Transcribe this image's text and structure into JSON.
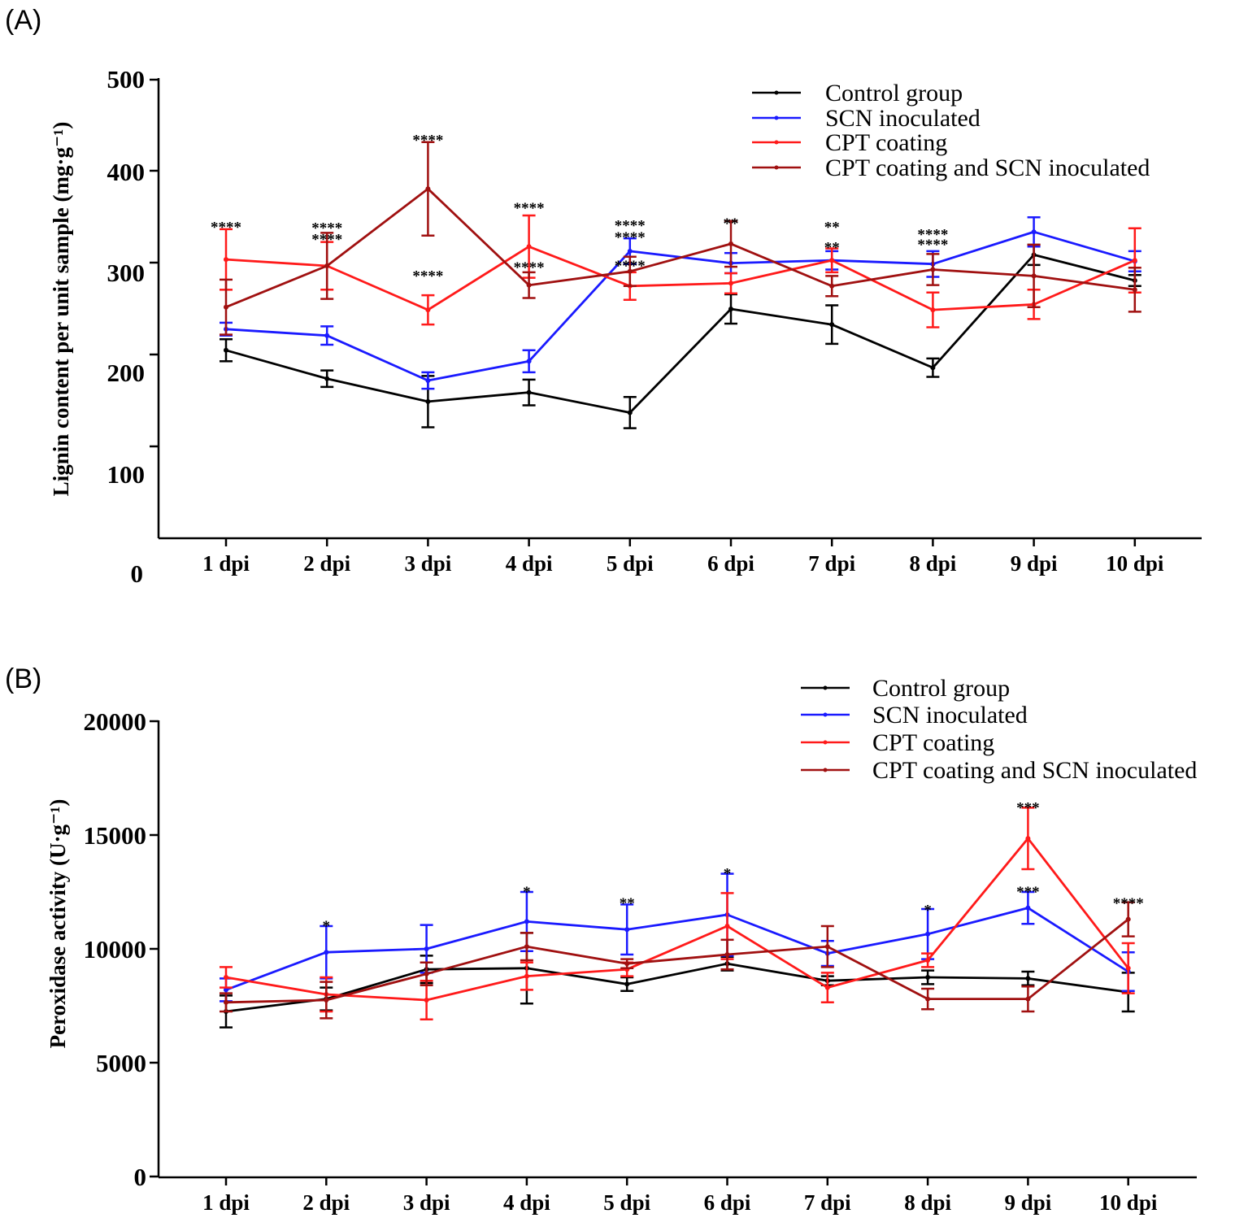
{
  "colors": {
    "control": "#000000",
    "scn": "#1a1aff",
    "cpt": "#ff1a1a",
    "cpt_scn": "#a01010",
    "axis": "#000000"
  },
  "chart_data": [
    {
      "type": "line",
      "panel_label": "(A)",
      "ylabel": "Lignin content per unit sample (mg·g⁻¹)",
      "ylim": [
        0,
        500
      ],
      "yticks": [
        {
          "value": 0,
          "label": "0"
        },
        {
          "value": 100,
          "label": "100"
        },
        {
          "value": 200,
          "label": "200"
        },
        {
          "value": 300,
          "label": "300"
        },
        {
          "value": 400,
          "label": "400"
        },
        {
          "value": 500,
          "label": "500"
        }
      ],
      "categories": [
        "1 dpi",
        "2 dpi",
        "3 dpi",
        "4 dpi",
        "5 dpi",
        "6 dpi",
        "7 dpi",
        "8 dpi",
        "9 dpi",
        "10 dpi"
      ],
      "series": [
        {
          "key": "control",
          "name": "Control group",
          "values": [
            205,
            174,
            149,
            159,
            137,
            250,
            233,
            186,
            309,
            281
          ],
          "errors": [
            12,
            9,
            28,
            14,
            17,
            16,
            21,
            10,
            11,
            6
          ]
        },
        {
          "key": "scn",
          "name": "SCN inoculated",
          "values": [
            228,
            221,
            172,
            193,
            313,
            300,
            303,
            299,
            334,
            302
          ],
          "errors": [
            7,
            10,
            9,
            12,
            14,
            11,
            10,
            14,
            16,
            11
          ]
        },
        {
          "key": "cpt",
          "name": "CPT coating",
          "values": [
            304,
            297,
            249,
            318,
            275,
            278,
            303,
            249,
            255,
            303
          ],
          "errors": [
            33,
            26,
            16,
            34,
            15,
            11,
            13,
            19,
            16,
            35
          ]
        },
        {
          "key": "cpt_scn",
          "name": "CPT coating and SCN inoculated",
          "values": [
            252,
            297,
            381,
            276,
            291,
            321,
            275,
            293,
            286,
            271
          ],
          "errors": [
            30,
            36,
            51,
            14,
            16,
            25,
            11,
            17,
            34,
            24
          ]
        }
      ],
      "annotations": [
        {
          "index": 0,
          "value": 339,
          "text": "****"
        },
        {
          "index": 1,
          "value": 338,
          "text": "****"
        },
        {
          "index": 1,
          "value": 326,
          "text": "****"
        },
        {
          "index": 2,
          "value": 434,
          "text": "****"
        },
        {
          "index": 2,
          "value": 286,
          "text": "****"
        },
        {
          "index": 3,
          "value": 360,
          "text": "****"
        },
        {
          "index": 3,
          "value": 295,
          "text": "****"
        },
        {
          "index": 4,
          "value": 341,
          "text": "****"
        },
        {
          "index": 4,
          "value": 328,
          "text": "****"
        },
        {
          "index": 4,
          "value": 297,
          "text": "****"
        },
        {
          "index": 5,
          "value": 343,
          "text": "**"
        },
        {
          "index": 6,
          "value": 339,
          "text": "**"
        },
        {
          "index": 6,
          "value": 317,
          "text": "**"
        },
        {
          "index": 7,
          "value": 331,
          "text": "****"
        },
        {
          "index": 7,
          "value": 320,
          "text": "****"
        }
      ]
    },
    {
      "type": "line",
      "panel_label": "(B)",
      "ylabel": "Peroxidase activity (U·g⁻¹)",
      "ylim": [
        0,
        20000
      ],
      "yticks": [
        {
          "value": 0,
          "label": "0"
        },
        {
          "value": 5000,
          "label": "5000"
        },
        {
          "value": 10000,
          "label": "10000"
        },
        {
          "value": 15000,
          "label": "15000"
        },
        {
          "value": 20000,
          "label": "20000"
        }
      ],
      "categories": [
        "1 dpi",
        "2 dpi",
        "3 dpi",
        "4 dpi",
        "5 dpi",
        "6 dpi",
        "7 dpi",
        "8 dpi",
        "9 dpi",
        "10 dpi"
      ],
      "series": [
        {
          "key": "control",
          "name": "Control group",
          "values": [
            7250,
            7800,
            9100,
            9150,
            8450,
            9350,
            8600,
            8750,
            8700,
            8100
          ],
          "errors": [
            700,
            500,
            600,
            1550,
            300,
            300,
            200,
            300,
            300,
            850
          ]
        },
        {
          "key": "scn",
          "name": "SCN inoculated",
          "values": [
            8200,
            9850,
            10000,
            11200,
            10850,
            11500,
            9800,
            10650,
            11800,
            9000
          ],
          "errors": [
            500,
            1150,
            1050,
            1300,
            1100,
            1800,
            550,
            1100,
            700,
            850
          ]
        },
        {
          "key": "cpt",
          "name": "CPT coating",
          "values": [
            8750,
            8000,
            7750,
            8800,
            9100,
            11000,
            8300,
            9500,
            14850,
            9150
          ],
          "errors": [
            450,
            750,
            850,
            600,
            300,
            1450,
            650,
            300,
            1350,
            1100
          ]
        },
        {
          "key": "cpt_scn",
          "name": "CPT coating and SCN inoculated",
          "values": [
            7650,
            7750,
            8900,
            10100,
            9350,
            9750,
            10100,
            7800,
            7800,
            11300
          ],
          "errors": [
            400,
            800,
            500,
            600,
            200,
            650,
            900,
            450,
            550,
            750
          ]
        }
      ],
      "annotations": [
        {
          "index": 1,
          "value": 11000,
          "text": "*"
        },
        {
          "index": 3,
          "value": 12500,
          "text": "*"
        },
        {
          "index": 4,
          "value": 12000,
          "text": "**"
        },
        {
          "index": 5,
          "value": 13300,
          "text": "*"
        },
        {
          "index": 7,
          "value": 11700,
          "text": "*"
        },
        {
          "index": 8,
          "value": 16200,
          "text": "***"
        },
        {
          "index": 8,
          "value": 12500,
          "text": "***"
        },
        {
          "index": 9,
          "value": 12000,
          "text": "****"
        }
      ]
    }
  ]
}
